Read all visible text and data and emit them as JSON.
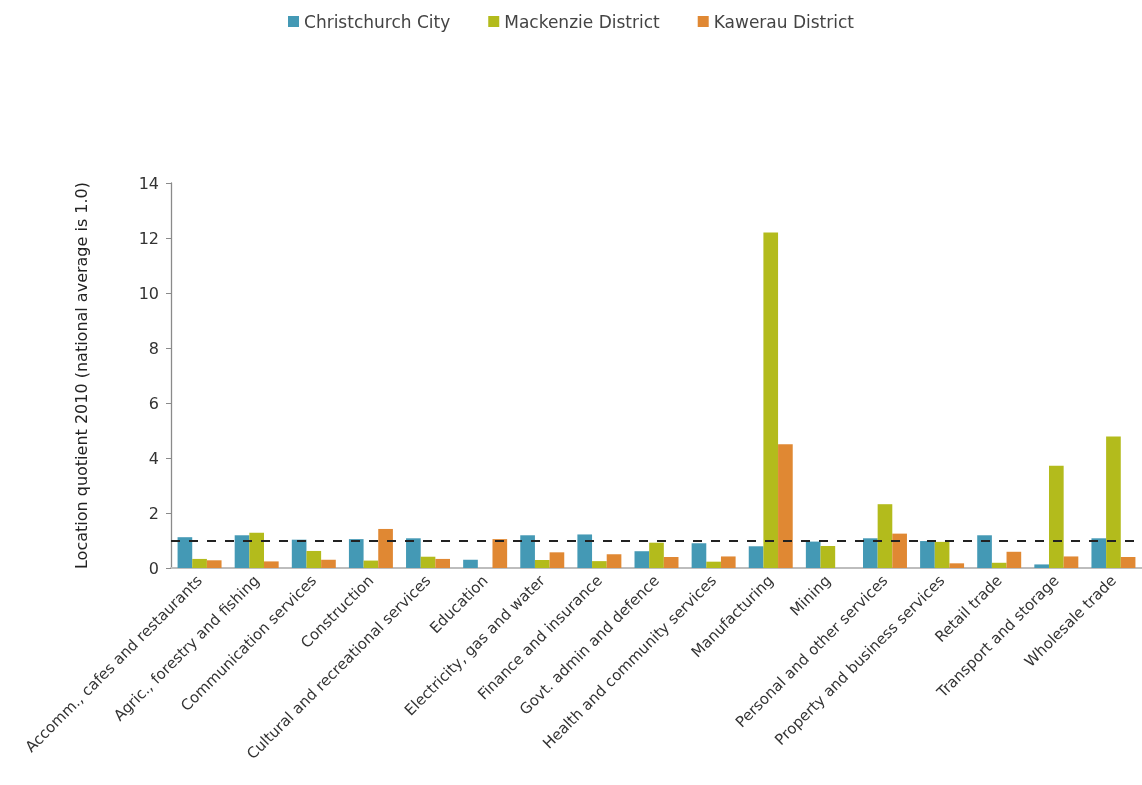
{
  "chart_data": {
    "type": "bar",
    "ylabel": "Location quotient 2010 (national average is 1.0)",
    "categories": [
      "Accomm., cafes and restaurants",
      "Agric., forestry and fishing",
      "Communication services",
      "Construction",
      "Cultural and recreational services",
      "Education",
      "Electricity, gas and water",
      "Finance and insurance",
      "Govt. admin and defence",
      "Health and community services",
      "Manufacturing",
      "Mining",
      "Personal and other services",
      "Property and business services",
      "Retail trade",
      "Transport and storage",
      "Wholesale trade"
    ],
    "series": [
      {
        "name": "Christchurch City",
        "color": "#4499b5",
        "values": [
          1.12,
          1.19,
          1.03,
          1.05,
          1.08,
          0.3,
          1.19,
          1.22,
          0.61,
          0.9,
          0.79,
          0.96,
          1.08,
          0.98,
          1.19,
          0.13,
          1.08
        ]
      },
      {
        "name": "Mackenzie District",
        "color": "#b3bb1c",
        "values": [
          0.33,
          1.28,
          0.62,
          0.27,
          0.41,
          null,
          0.29,
          0.25,
          0.92,
          0.23,
          12.2,
          0.8,
          2.32,
          0.95,
          0.19,
          3.72,
          4.78
        ]
      },
      {
        "name": "Kawerau District",
        "color": "#e08833",
        "values": [
          0.28,
          0.24,
          0.3,
          1.42,
          0.33,
          1.05,
          0.57,
          0.5,
          0.4,
          0.42,
          4.5,
          null,
          1.25,
          0.17,
          0.59,
          0.42,
          0.4
        ]
      }
    ],
    "ylim": [
      0,
      14
    ],
    "yticks": [
      0,
      2,
      4,
      6,
      8,
      10,
      12,
      14
    ],
    "ref_lines": [
      {
        "axis": "y",
        "value": 1,
        "color": "#222222",
        "line_style": "dashed"
      }
    ],
    "legend": "top",
    "grid": false
  }
}
